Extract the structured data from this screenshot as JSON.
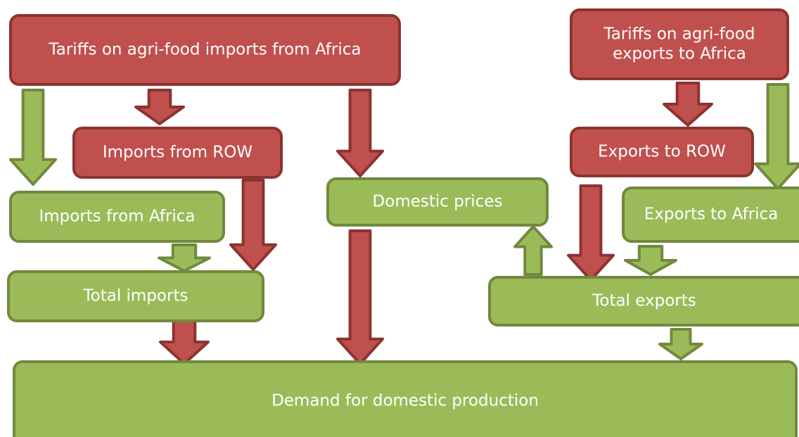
{
  "nodes": [
    {
      "label": "Tariffs on agri-food imports from Africa"
    },
    {
      "label": [
        "Tariffs on agri-food",
        "exports to Africa"
      ]
    },
    {
      "label": "Imports from ROW"
    },
    {
      "label": "Exports to ROW"
    },
    {
      "label": "Imports from Africa"
    },
    {
      "label": "Domestic prices"
    },
    {
      "label": "Exports to Africa"
    },
    {
      "label": "Total imports"
    },
    {
      "label": "Total exports"
    },
    {
      "label": "Demand for domestic production"
    }
  ]
}
